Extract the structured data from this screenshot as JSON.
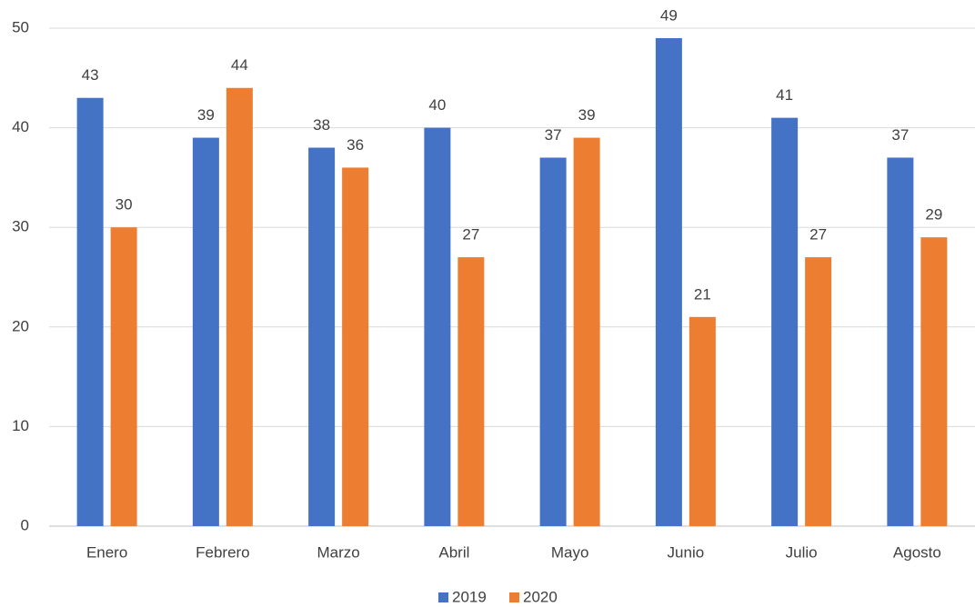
{
  "chart_data": {
    "type": "bar",
    "categories": [
      "Enero",
      "Febrero",
      "Marzo",
      "Abril",
      "Mayo",
      "Junio",
      "Julio",
      "Agosto"
    ],
    "series": [
      {
        "name": "2019",
        "color": "#4472c4",
        "values": [
          43,
          39,
          38,
          40,
          37,
          49,
          41,
          37
        ]
      },
      {
        "name": "2020",
        "color": "#ed7d31",
        "values": [
          30,
          44,
          36,
          27,
          39,
          21,
          27,
          29
        ]
      }
    ],
    "ylim": [
      0,
      50
    ],
    "yticks": [
      0,
      10,
      20,
      30,
      40,
      50
    ],
    "grid": true,
    "legend": "bottom"
  }
}
